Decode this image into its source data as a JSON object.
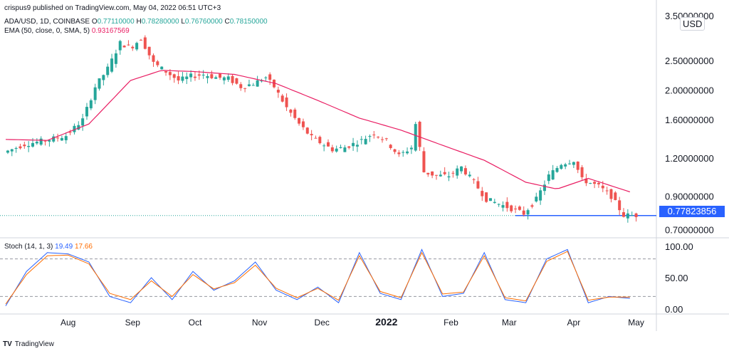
{
  "publisher": "crispus9 published on TradingView.com, May 04, 2022 06:51 UTC+3",
  "footer_brand": "TradingView",
  "footer_logo": "TV",
  "currency": "USD",
  "last_price_label": "0.77823856",
  "ohlc_legend": {
    "symbol": "ADA/USD, 1D, COINBASE",
    "o_label": "O",
    "o": "0.77110000",
    "h_label": "H",
    "h": "0.78280000",
    "l_label": "L",
    "l": "0.76760000",
    "c_label": "C",
    "c": "0.78150000"
  },
  "ema_legend": {
    "label": "EMA (50, close, 0, SMA, 5)",
    "value": "0.93167569"
  },
  "stoch_legend": {
    "label": "Stoch (14, 1, 3)",
    "k": "19.49",
    "d": "17.66"
  },
  "chart_data": [
    {
      "type": "candlestick",
      "title": "ADA/USD, 1D, COINBASE",
      "scale": "log",
      "ylim": [
        0.68,
        3.5
      ],
      "y_ticks": [
        "3.50000000",
        "2.50000000",
        "2.00000000",
        "1.60000000",
        "1.20000000",
        "0.90000000",
        "0.70000000"
      ],
      "y_tick_values": [
        3.5,
        2.5,
        2.0,
        1.6,
        1.2,
        0.9,
        0.7
      ],
      "x_ticks": [
        "Aug",
        "Sep",
        "Oct",
        "Nov",
        "Dec",
        "2022",
        "Feb",
        "Mar",
        "Apr",
        "May"
      ],
      "x_tick_days": [
        30,
        61,
        91,
        122,
        152,
        183,
        214,
        242,
        273,
        303
      ],
      "x_range": [
        0,
        310
      ],
      "series": [
        {
          "name": "ADA/USD",
          "points": [
            [
              0,
              1.25
            ],
            [
              10,
              1.33
            ],
            [
              20,
              1.37
            ],
            [
              30,
              1.42
            ],
            [
              38,
              1.6
            ],
            [
              44,
              2.05
            ],
            [
              50,
              2.35
            ],
            [
              56,
              2.85
            ],
            [
              61,
              2.75
            ],
            [
              66,
              2.95
            ],
            [
              72,
              2.45
            ],
            [
              78,
              2.3
            ],
            [
              84,
              2.15
            ],
            [
              90,
              2.22
            ],
            [
              96,
              2.25
            ],
            [
              102,
              2.2
            ],
            [
              108,
              2.18
            ],
            [
              114,
              2.05
            ],
            [
              120,
              2.1
            ],
            [
              126,
              2.2
            ],
            [
              130,
              2.05
            ],
            [
              136,
              1.75
            ],
            [
              142,
              1.55
            ],
            [
              148,
              1.4
            ],
            [
              152,
              1.35
            ],
            [
              158,
              1.28
            ],
            [
              164,
              1.3
            ],
            [
              172,
              1.37
            ],
            [
              178,
              1.45
            ],
            [
              184,
              1.36
            ],
            [
              190,
              1.22
            ],
            [
              196,
              1.3
            ],
            [
              198,
              1.55
            ],
            [
              202,
              1.08
            ],
            [
              208,
              1.05
            ],
            [
              214,
              1.05
            ],
            [
              220,
              1.12
            ],
            [
              226,
              1.0
            ],
            [
              232,
              0.88
            ],
            [
              238,
              0.85
            ],
            [
              244,
              0.82
            ],
            [
              250,
              0.79
            ],
            [
              256,
              0.88
            ],
            [
              262,
              1.05
            ],
            [
              268,
              1.15
            ],
            [
              274,
              1.18
            ],
            [
              278,
              1.02
            ],
            [
              286,
              0.97
            ],
            [
              292,
              0.9
            ],
            [
              298,
              0.78
            ],
            [
              303,
              0.78
            ]
          ]
        },
        {
          "name": "EMA",
          "points": [
            [
              0,
              1.38
            ],
            [
              20,
              1.37
            ],
            [
              40,
              1.55
            ],
            [
              60,
              2.15
            ],
            [
              75,
              2.32
            ],
            [
              90,
              2.3
            ],
            [
              110,
              2.25
            ],
            [
              130,
              2.1
            ],
            [
              150,
              1.85
            ],
            [
              170,
              1.62
            ],
            [
              190,
              1.48
            ],
            [
              210,
              1.32
            ],
            [
              230,
              1.18
            ],
            [
              250,
              1.0
            ],
            [
              265,
              0.95
            ],
            [
              280,
              1.03
            ],
            [
              300,
              0.93
            ]
          ]
        }
      ],
      "price_line": 0.77823856
    },
    {
      "type": "line",
      "title": "Stoch (14, 1, 3)",
      "ylim": [
        0,
        100
      ],
      "y_ticks": [
        "100.00",
        "50.00",
        "0.00"
      ],
      "y_tick_values": [
        100,
        50,
        0
      ],
      "bands": [
        80,
        20
      ],
      "series": [
        {
          "name": "%K",
          "points": [
            [
              0,
              5
            ],
            [
              10,
              60
            ],
            [
              20,
              90
            ],
            [
              30,
              88
            ],
            [
              40,
              75
            ],
            [
              50,
              20
            ],
            [
              60,
              10
            ],
            [
              70,
              50
            ],
            [
              80,
              15
            ],
            [
              90,
              60
            ],
            [
              100,
              30
            ],
            [
              110,
              45
            ],
            [
              120,
              75
            ],
            [
              130,
              30
            ],
            [
              140,
              15
            ],
            [
              150,
              35
            ],
            [
              160,
              10
            ],
            [
              170,
              90
            ],
            [
              180,
              25
            ],
            [
              190,
              15
            ],
            [
              200,
              95
            ],
            [
              210,
              20
            ],
            [
              220,
              25
            ],
            [
              230,
              90
            ],
            [
              240,
              15
            ],
            [
              250,
              10
            ],
            [
              260,
              80
            ],
            [
              270,
              95
            ],
            [
              280,
              10
            ],
            [
              290,
              20
            ],
            [
              300,
              17
            ]
          ]
        },
        {
          "name": "%D",
          "points": [
            [
              0,
              8
            ],
            [
              10,
              55
            ],
            [
              20,
              85
            ],
            [
              30,
              86
            ],
            [
              40,
              72
            ],
            [
              50,
              25
            ],
            [
              60,
              15
            ],
            [
              70,
              45
            ],
            [
              80,
              20
            ],
            [
              90,
              55
            ],
            [
              100,
              32
            ],
            [
              110,
              42
            ],
            [
              120,
              70
            ],
            [
              130,
              33
            ],
            [
              140,
              18
            ],
            [
              150,
              33
            ],
            [
              160,
              14
            ],
            [
              170,
              85
            ],
            [
              180,
              28
            ],
            [
              190,
              18
            ],
            [
              200,
              90
            ],
            [
              210,
              24
            ],
            [
              220,
              27
            ],
            [
              230,
              85
            ],
            [
              240,
              18
            ],
            [
              250,
              13
            ],
            [
              260,
              76
            ],
            [
              270,
              92
            ],
            [
              280,
              14
            ],
            [
              290,
              19
            ],
            [
              300,
              19
            ]
          ]
        }
      ]
    }
  ]
}
